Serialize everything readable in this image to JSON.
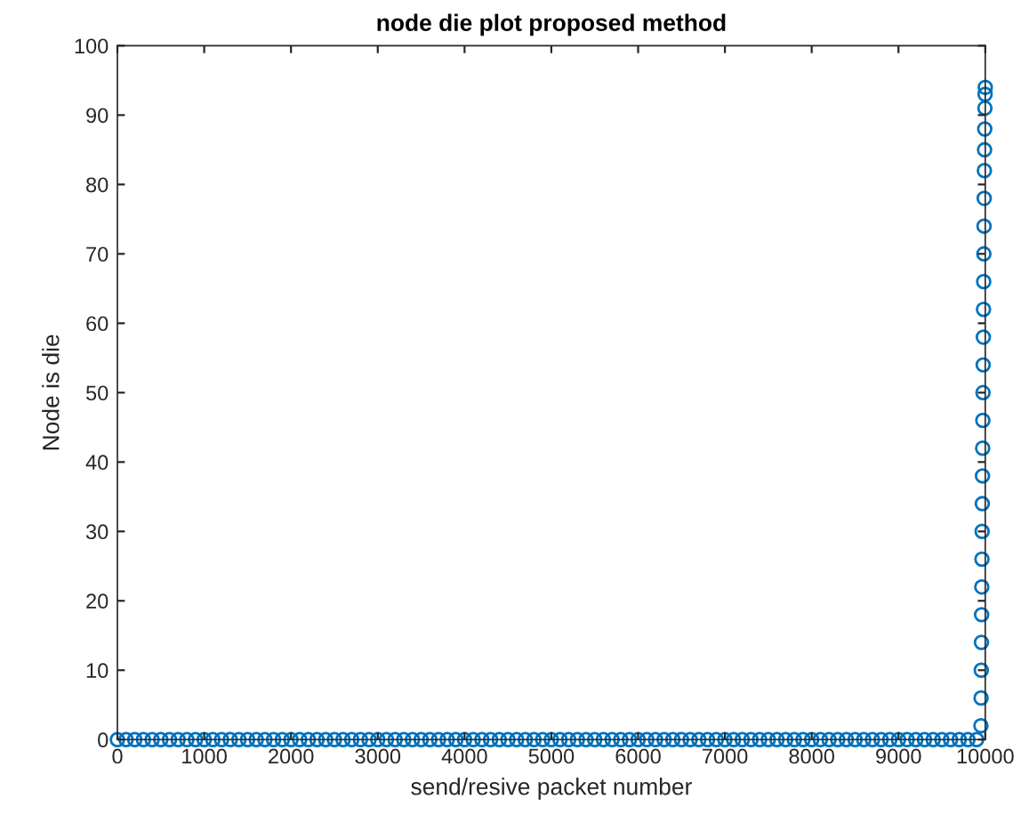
{
  "chart_data": {
    "type": "scatter",
    "title": "node die plot proposed method",
    "xlabel": "send/resive packet number",
    "ylabel": "Node is die",
    "xlim": [
      0,
      10000
    ],
    "ylim": [
      0,
      100
    ],
    "xticks": [
      0,
      1000,
      2000,
      3000,
      4000,
      5000,
      6000,
      7000,
      8000,
      9000,
      10000
    ],
    "yticks": [
      0,
      10,
      20,
      30,
      40,
      50,
      60,
      70,
      80,
      90,
      100
    ],
    "marker": "circle",
    "grid": false,
    "series": [
      {
        "color": "#0072bd",
        "x": [
          0,
          100,
          200,
          300,
          400,
          500,
          600,
          700,
          800,
          900,
          1000,
          1100,
          1200,
          1300,
          1400,
          1500,
          1600,
          1700,
          1800,
          1900,
          2000,
          2100,
          2200,
          2300,
          2400,
          2500,
          2600,
          2700,
          2800,
          2900,
          3000,
          3100,
          3200,
          3300,
          3400,
          3500,
          3600,
          3700,
          3800,
          3900,
          4000,
          4100,
          4200,
          4300,
          4400,
          4500,
          4600,
          4700,
          4800,
          4900,
          5000,
          5100,
          5200,
          5300,
          5400,
          5500,
          5600,
          5700,
          5800,
          5900,
          6000,
          6100,
          6200,
          6300,
          6400,
          6500,
          6600,
          6700,
          6800,
          6900,
          7000,
          7100,
          7200,
          7300,
          7400,
          7500,
          7600,
          7700,
          7800,
          7900,
          8000,
          8100,
          8200,
          8300,
          8400,
          8500,
          8600,
          8700,
          8800,
          8900,
          9000,
          9100,
          9200,
          9300,
          9400,
          9500,
          9600,
          9700,
          9800,
          9900,
          9950,
          9952,
          9954,
          9956,
          9958,
          9960,
          9962,
          9964,
          9966,
          9968,
          9970,
          9972,
          9974,
          9976,
          9978,
          9980,
          9982,
          9984,
          9986,
          9988,
          9990,
          9992,
          9994,
          9996,
          9998,
          10000
        ],
        "values": [
          0,
          0,
          0,
          0,
          0,
          0,
          0,
          0,
          0,
          0,
          0,
          0,
          0,
          0,
          0,
          0,
          0,
          0,
          0,
          0,
          0,
          0,
          0,
          0,
          0,
          0,
          0,
          0,
          0,
          0,
          0,
          0,
          0,
          0,
          0,
          0,
          0,
          0,
          0,
          0,
          0,
          0,
          0,
          0,
          0,
          0,
          0,
          0,
          0,
          0,
          0,
          0,
          0,
          0,
          0,
          0,
          0,
          0,
          0,
          0,
          0,
          0,
          0,
          0,
          0,
          0,
          0,
          0,
          0,
          0,
          0,
          0,
          0,
          0,
          0,
          0,
          0,
          0,
          0,
          0,
          0,
          0,
          0,
          0,
          0,
          0,
          0,
          0,
          0,
          0,
          0,
          0,
          0,
          0,
          0,
          0,
          0,
          0,
          0,
          0,
          2,
          6,
          10,
          14,
          18,
          22,
          26,
          30,
          34,
          38,
          42,
          46,
          50,
          54,
          58,
          62,
          66,
          70,
          74,
          78,
          82,
          85,
          88,
          91,
          93,
          94
        ]
      }
    ]
  }
}
